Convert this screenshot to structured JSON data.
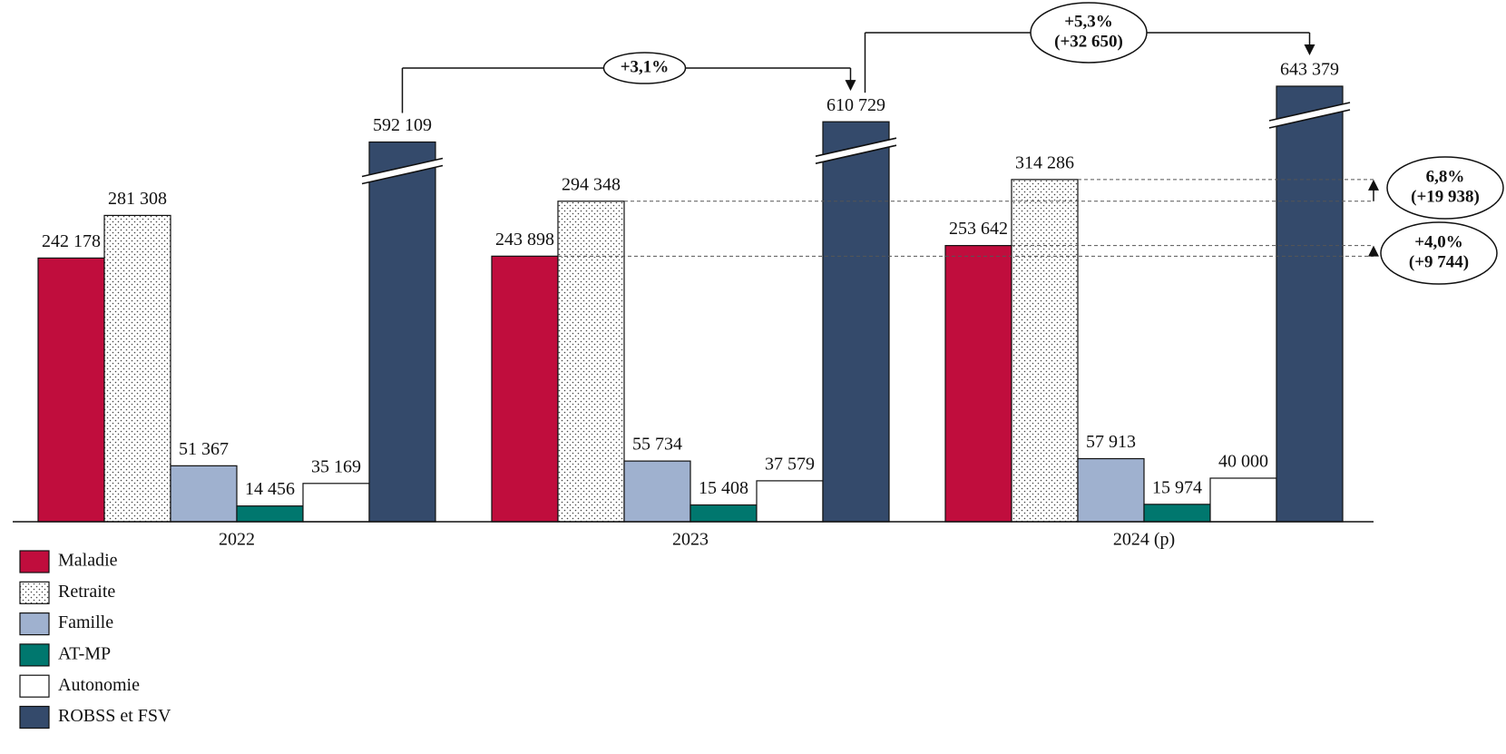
{
  "chart_data": {
    "type": "bar",
    "categories": [
      "2022",
      "2023",
      "2024 (p)"
    ],
    "series": [
      {
        "name": "Maladie",
        "color": "#c00d3d",
        "values": [
          242178,
          243898,
          253642
        ],
        "value_labels": [
          "242 178",
          "243 898",
          "253 642"
        ]
      },
      {
        "name": "Retraite",
        "color": "#ffffff",
        "pattern": "dots",
        "values": [
          281308,
          294348,
          314286
        ],
        "value_labels": [
          "281 308",
          "294 348",
          "314 286"
        ]
      },
      {
        "name": "Famille",
        "color": "#9fb1cf",
        "values": [
          51367,
          55734,
          57913
        ],
        "value_labels": [
          "51 367",
          "55 734",
          "57 913"
        ]
      },
      {
        "name": "AT-MP",
        "color": "#00776e",
        "values": [
          14456,
          15408,
          15974
        ],
        "value_labels": [
          "14 456",
          "15 408",
          "15 974"
        ]
      },
      {
        "name": "Autonomie",
        "color": "#ffffff",
        "values": [
          35169,
          37579,
          40000
        ],
        "value_labels": [
          "35 169",
          "37 579",
          "40 000"
        ]
      },
      {
        "name": "ROBSS et FSV",
        "color": "#344a6b",
        "values": [
          592109,
          610729,
          643379
        ],
        "value_labels": [
          "592 109",
          "610 729",
          "643 379"
        ]
      }
    ],
    "legend": "bottom-left",
    "annotations": [
      {
        "lines": [
          "+3,1%"
        ]
      },
      {
        "lines": [
          "+5,3%",
          "(+32 650)"
        ]
      },
      {
        "lines": [
          "6,8%",
          "(+19 938)"
        ]
      },
      {
        "lines": [
          "+4,0%",
          "(+9 744)"
        ]
      }
    ]
  }
}
